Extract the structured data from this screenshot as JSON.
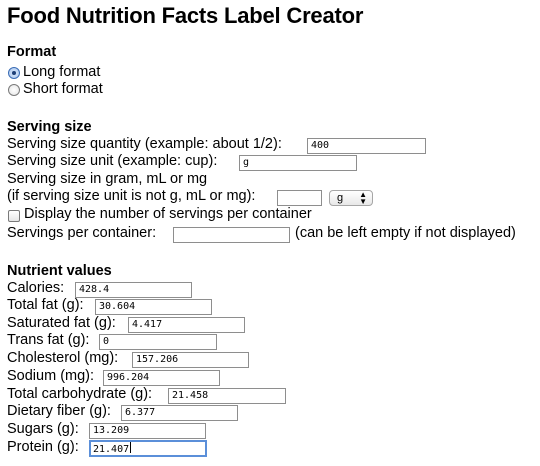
{
  "title": "Food Nutrition Facts Label Creator",
  "format": {
    "heading": "Format",
    "options": [
      {
        "label": "Long format",
        "checked": true
      },
      {
        "label": "Short format",
        "checked": false
      }
    ]
  },
  "serving": {
    "heading": "Serving size",
    "quantity_label": "Serving size quantity (example: about 1/2):",
    "quantity_value": "400",
    "unit_label": "Serving size unit (example: cup):",
    "unit_value": "g",
    "gram_line1": "Serving size in gram, mL or mg",
    "gram_line2": "(if serving size unit is not g, mL or mg):",
    "gram_value": "",
    "gram_unit_selected": "g",
    "display_servings_label": "Display the number of servings per container",
    "display_servings_checked": false,
    "per_container_label": "Servings per container:",
    "per_container_value": "",
    "per_container_note": "(can be left empty if not displayed)"
  },
  "nutrients": {
    "heading": "Nutrient values",
    "fields": [
      {
        "label": "Calories:",
        "value": "428.4"
      },
      {
        "label": "Total fat (g):",
        "value": "30.604"
      },
      {
        "label": "Saturated fat (g):",
        "value": "4.417"
      },
      {
        "label": "Trans fat (g):",
        "value": "0"
      },
      {
        "label": "Cholesterol (mg):",
        "value": "157.206"
      },
      {
        "label": "Sodium (mg):",
        "value": "996.204"
      },
      {
        "label": "Total carbohydrate (g):",
        "value": "21.458"
      },
      {
        "label": "Dietary fiber (g):",
        "value": "6.377"
      },
      {
        "label": "Sugars (g):",
        "value": "13.209"
      },
      {
        "label": "Protein (g):",
        "value": "21.407"
      }
    ]
  }
}
